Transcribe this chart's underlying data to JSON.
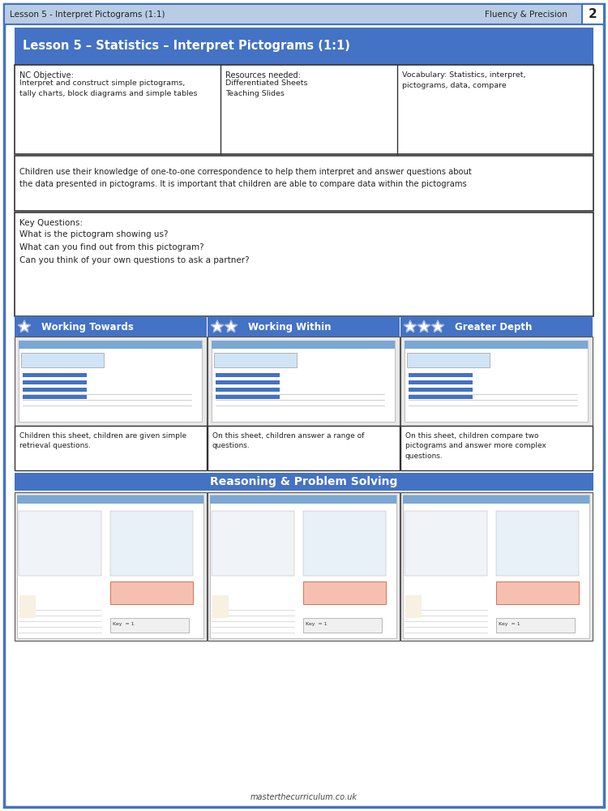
{
  "page_bg": "#ffffff",
  "border_color": "#4472c4",
  "header_bg": "#b8cce4",
  "header_text": "Lesson 5 - Interpret Pictograms (1:1)",
  "header_right": "Fluency & Precision",
  "header_num": "2",
  "title_bar_bg": "#4472c4",
  "title_bar_text": "Lesson 5 – Statistics – Interpret Pictograms (1:1)",
  "nc_objective_label": "NC Objective:",
  "nc_objective_text": "Interpret and construct simple pictograms,\ntally charts, block diagrams and simple tables",
  "resources_label": "Resources needed:",
  "resources_text": "Differentiated Sheets\nTeaching Slides",
  "vocab_label": "Vocabulary: Statistics, interpret,\npictograms, data, compare",
  "description_text": "Children use their knowledge of one-to-one correspondence to help them interpret and answer questions about\nthe data presented in pictograms. It is important that children are able to compare data within the pictograms",
  "key_questions_label": "Key Questions:",
  "key_questions": [
    "What is the pictogram showing us?",
    "What can you find out from this pictogram?",
    "Can you think of your own questions to ask a partner?"
  ],
  "section_bar_bg": "#4472c4",
  "sections": [
    {
      "stars": 1,
      "label": "Working Towards"
    },
    {
      "stars": 2,
      "label": "Working Within"
    },
    {
      "stars": 3,
      "label": "Greater Depth"
    }
  ],
  "section_desc": [
    "Children this sheet, children are given simple\nretrieval questions.",
    "On this sheet, children answer a range of\nquestions.",
    "On this sheet, children compare two\npictograms and answer more complex\nquestions."
  ],
  "rps_bar_bg": "#4472c4",
  "rps_text": "Reasoning & Problem Solving",
  "footer_text": "masterthecurriculum.co.uk",
  "outer_border_color": "#4472c4",
  "section_content_bg": "#f5f5f5",
  "inner_border": "#333333"
}
